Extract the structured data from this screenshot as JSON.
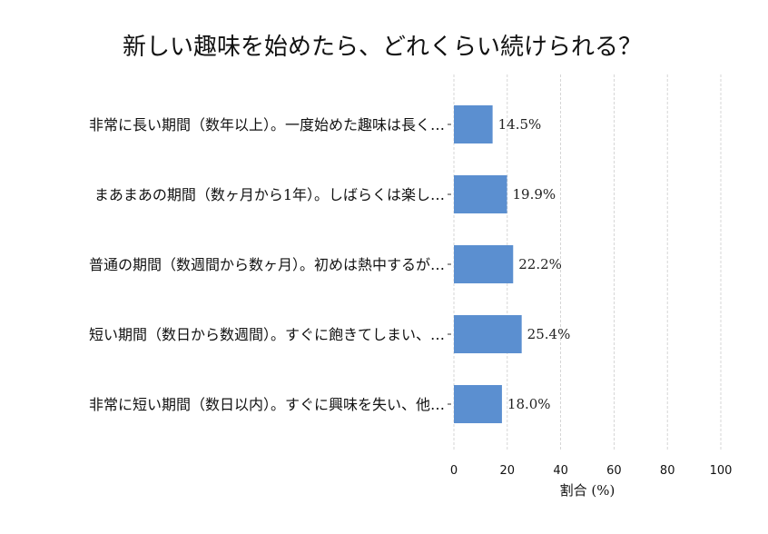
{
  "chart_data": {
    "type": "bar",
    "orientation": "horizontal",
    "title": "新しい趣味を始めたら、どれくらい続けられる？",
    "xlabel": "割合 (%)",
    "ylabel": "",
    "xlim": [
      0,
      100
    ],
    "xticks": [
      0,
      20,
      40,
      60,
      80,
      100
    ],
    "grid": "vertical dashed",
    "bar_color": "#5b8fd0",
    "categories": [
      "非常に長い期間（数年以上）。一度始めた趣味は長く…",
      "まあまあの期間（数ヶ月から1年）。しばらくは楽し…",
      "普通の期間（数週間から数ヶ月）。初めは熱中するが…",
      "短い期間（数日から数週間）。すぐに飽きてしまい、…",
      "非常に短い期間（数日以内）。すぐに興味を失い、他…"
    ],
    "values": [
      14.5,
      19.9,
      22.2,
      25.4,
      18.0
    ],
    "data_labels": [
      "14.5%",
      "19.9%",
      "22.2%",
      "25.4%",
      "18.0%"
    ]
  }
}
